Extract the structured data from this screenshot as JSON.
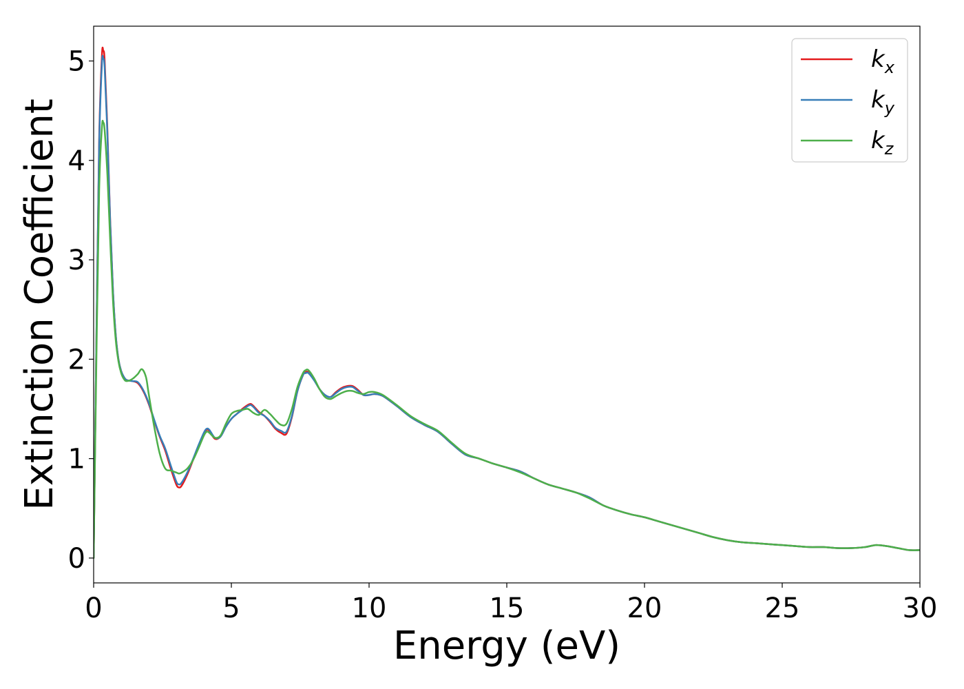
{
  "chart_data": {
    "type": "line",
    "xlabel": "Energy (eV)",
    "ylabel": "Extinction Coefficient",
    "xlim": [
      0,
      30
    ],
    "ylim": [
      -0.25,
      5.35
    ],
    "xticks": [
      0,
      5,
      10,
      15,
      20,
      25,
      30
    ],
    "yticks": [
      0,
      1,
      2,
      3,
      4,
      5
    ],
    "grid": false,
    "legend": {
      "position": "top-right"
    },
    "series": [
      {
        "name": "k_x",
        "label_base": "k",
        "label_sub": "x",
        "color": "#e41a1c",
        "x": [
          0,
          0.1,
          0.2,
          0.3,
          0.35,
          0.4,
          0.5,
          0.6,
          0.7,
          0.8,
          0.9,
          1.0,
          1.1,
          1.2,
          1.4,
          1.6,
          1.8,
          2.0,
          2.2,
          2.4,
          2.6,
          2.8,
          3.0,
          3.1,
          3.2,
          3.4,
          3.6,
          3.8,
          4.0,
          4.1,
          4.2,
          4.4,
          4.6,
          4.8,
          5.0,
          5.2,
          5.4,
          5.6,
          5.7,
          5.8,
          6.0,
          6.2,
          6.4,
          6.6,
          6.8,
          7.0,
          7.2,
          7.4,
          7.6,
          7.7,
          7.8,
          8.0,
          8.2,
          8.4,
          8.6,
          8.8,
          9.0,
          9.2,
          9.4,
          9.6,
          9.8,
          10.0,
          10.2,
          10.5,
          11.0,
          11.5,
          12.0,
          12.5,
          13.0,
          13.5,
          14.0,
          14.5,
          15.0,
          15.5,
          16.0,
          16.5,
          17.0,
          17.5,
          18.0,
          18.5,
          19.0,
          19.5,
          20.0,
          20.5,
          21.0,
          21.5,
          22.0,
          22.5,
          23.0,
          23.5,
          24.0,
          24.5,
          25.0,
          25.5,
          26.0,
          26.5,
          27.0,
          27.5,
          28.0,
          28.4,
          28.8,
          29.2,
          29.6,
          30.0
        ],
        "y": [
          0.0,
          2.2,
          4.2,
          5.05,
          5.1,
          5.0,
          4.3,
          3.4,
          2.7,
          2.25,
          2.0,
          1.88,
          1.82,
          1.79,
          1.78,
          1.76,
          1.68,
          1.55,
          1.38,
          1.22,
          1.08,
          0.9,
          0.74,
          0.71,
          0.73,
          0.84,
          0.98,
          1.12,
          1.25,
          1.29,
          1.28,
          1.2,
          1.22,
          1.32,
          1.4,
          1.45,
          1.5,
          1.54,
          1.55,
          1.53,
          1.47,
          1.43,
          1.37,
          1.3,
          1.26,
          1.25,
          1.42,
          1.68,
          1.84,
          1.87,
          1.87,
          1.8,
          1.7,
          1.64,
          1.62,
          1.67,
          1.71,
          1.73,
          1.73,
          1.69,
          1.64,
          1.64,
          1.65,
          1.63,
          1.53,
          1.42,
          1.34,
          1.27,
          1.15,
          1.04,
          1.0,
          0.95,
          0.91,
          0.87,
          0.8,
          0.74,
          0.7,
          0.66,
          0.61,
          0.53,
          0.48,
          0.44,
          0.41,
          0.37,
          0.33,
          0.29,
          0.25,
          0.21,
          0.18,
          0.16,
          0.15,
          0.14,
          0.13,
          0.12,
          0.11,
          0.11,
          0.1,
          0.1,
          0.11,
          0.13,
          0.12,
          0.1,
          0.08,
          0.08
        ]
      },
      {
        "name": "k_y",
        "label_base": "k",
        "label_sub": "y",
        "color": "#377eb8",
        "x": [
          0,
          0.1,
          0.2,
          0.3,
          0.35,
          0.4,
          0.5,
          0.6,
          0.7,
          0.8,
          0.9,
          1.0,
          1.1,
          1.2,
          1.4,
          1.6,
          1.8,
          2.0,
          2.2,
          2.4,
          2.6,
          2.8,
          3.0,
          3.1,
          3.2,
          3.4,
          3.6,
          3.8,
          4.0,
          4.1,
          4.2,
          4.4,
          4.6,
          4.8,
          5.0,
          5.2,
          5.4,
          5.6,
          5.7,
          5.8,
          6.0,
          6.2,
          6.4,
          6.6,
          6.8,
          7.0,
          7.2,
          7.4,
          7.6,
          7.7,
          7.8,
          8.0,
          8.2,
          8.4,
          8.6,
          8.8,
          9.0,
          9.2,
          9.4,
          9.6,
          9.8,
          10.0,
          10.2,
          10.5,
          11.0,
          11.5,
          12.0,
          12.5,
          13.0,
          13.5,
          14.0,
          14.5,
          15.0,
          15.5,
          16.0,
          16.5,
          17.0,
          17.5,
          18.0,
          18.5,
          19.0,
          19.5,
          20.0,
          20.5,
          21.0,
          21.5,
          22.0,
          22.5,
          23.0,
          23.5,
          24.0,
          24.5,
          25.0,
          25.5,
          26.0,
          26.5,
          27.0,
          27.5,
          28.0,
          28.4,
          28.8,
          29.2,
          29.6,
          30.0
        ],
        "y": [
          0.0,
          2.2,
          4.15,
          4.97,
          5.02,
          4.93,
          4.25,
          3.38,
          2.7,
          2.25,
          2.0,
          1.88,
          1.82,
          1.79,
          1.78,
          1.77,
          1.69,
          1.56,
          1.39,
          1.23,
          1.1,
          0.93,
          0.77,
          0.74,
          0.76,
          0.86,
          0.99,
          1.13,
          1.26,
          1.3,
          1.29,
          1.21,
          1.22,
          1.32,
          1.4,
          1.45,
          1.49,
          1.53,
          1.54,
          1.52,
          1.46,
          1.43,
          1.38,
          1.31,
          1.28,
          1.27,
          1.43,
          1.68,
          1.84,
          1.86,
          1.86,
          1.79,
          1.7,
          1.64,
          1.62,
          1.66,
          1.7,
          1.72,
          1.72,
          1.68,
          1.64,
          1.64,
          1.65,
          1.63,
          1.53,
          1.42,
          1.34,
          1.27,
          1.15,
          1.04,
          1.0,
          0.95,
          0.91,
          0.87,
          0.8,
          0.74,
          0.7,
          0.66,
          0.61,
          0.53,
          0.48,
          0.44,
          0.41,
          0.37,
          0.33,
          0.29,
          0.25,
          0.21,
          0.18,
          0.16,
          0.15,
          0.14,
          0.13,
          0.12,
          0.11,
          0.11,
          0.1,
          0.1,
          0.11,
          0.13,
          0.12,
          0.1,
          0.08,
          0.08
        ]
      },
      {
        "name": "k_z",
        "label_base": "k",
        "label_sub": "z",
        "color": "#4daf4a",
        "x": [
          0,
          0.1,
          0.2,
          0.3,
          0.35,
          0.4,
          0.5,
          0.6,
          0.7,
          0.8,
          0.9,
          1.0,
          1.1,
          1.2,
          1.4,
          1.6,
          1.75,
          1.9,
          2.0,
          2.2,
          2.4,
          2.6,
          2.8,
          3.0,
          3.1,
          3.2,
          3.4,
          3.6,
          3.8,
          4.0,
          4.1,
          4.2,
          4.4,
          4.6,
          4.8,
          5.0,
          5.2,
          5.4,
          5.6,
          5.8,
          6.0,
          6.2,
          6.4,
          6.6,
          6.8,
          7.0,
          7.2,
          7.4,
          7.6,
          7.7,
          7.8,
          8.0,
          8.2,
          8.4,
          8.6,
          8.8,
          9.0,
          9.2,
          9.4,
          9.6,
          9.8,
          10.0,
          10.2,
          10.5,
          11.0,
          11.5,
          12.0,
          12.5,
          13.0,
          13.5,
          14.0,
          14.5,
          15.0,
          15.5,
          16.0,
          16.5,
          17.0,
          17.5,
          18.0,
          18.5,
          19.0,
          19.5,
          20.0,
          20.5,
          21.0,
          21.5,
          22.0,
          22.5,
          23.0,
          23.5,
          24.0,
          24.5,
          25.0,
          25.5,
          26.0,
          26.5,
          27.0,
          27.5,
          28.0,
          28.4,
          28.8,
          29.2,
          29.6,
          30.0
        ],
        "y": [
          0.0,
          2.0,
          3.7,
          4.33,
          4.38,
          4.3,
          3.85,
          3.2,
          2.6,
          2.2,
          1.98,
          1.86,
          1.8,
          1.78,
          1.8,
          1.85,
          1.9,
          1.82,
          1.65,
          1.32,
          1.05,
          0.9,
          0.88,
          0.86,
          0.85,
          0.86,
          0.9,
          0.98,
          1.1,
          1.23,
          1.27,
          1.26,
          1.21,
          1.23,
          1.35,
          1.45,
          1.48,
          1.49,
          1.5,
          1.46,
          1.44,
          1.49,
          1.45,
          1.39,
          1.34,
          1.35,
          1.5,
          1.72,
          1.86,
          1.89,
          1.89,
          1.81,
          1.7,
          1.62,
          1.6,
          1.63,
          1.66,
          1.68,
          1.68,
          1.66,
          1.65,
          1.67,
          1.67,
          1.64,
          1.54,
          1.43,
          1.35,
          1.28,
          1.16,
          1.05,
          1.0,
          0.95,
          0.91,
          0.86,
          0.8,
          0.74,
          0.7,
          0.66,
          0.6,
          0.53,
          0.48,
          0.44,
          0.41,
          0.37,
          0.33,
          0.29,
          0.25,
          0.21,
          0.18,
          0.16,
          0.15,
          0.14,
          0.13,
          0.12,
          0.11,
          0.11,
          0.1,
          0.1,
          0.11,
          0.13,
          0.12,
          0.1,
          0.08,
          0.08
        ]
      }
    ]
  }
}
